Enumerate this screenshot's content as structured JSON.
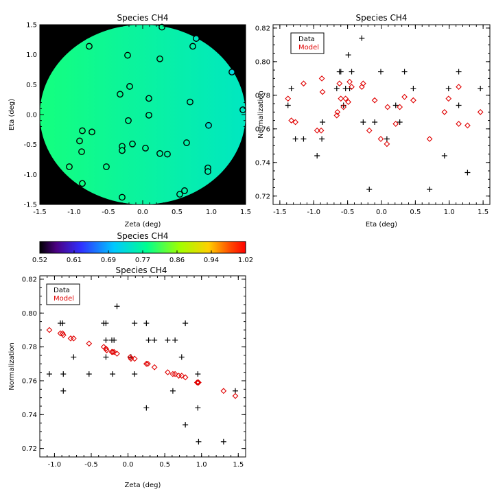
{
  "colors": {
    "data_marker": "#000000",
    "model_marker": "#e00000",
    "plot_bg": "#000000"
  },
  "chart_data": [
    {
      "id": "map",
      "type": "scatter",
      "title": "Species CH4",
      "xlabel": "Zeta (deg)",
      "ylabel": "Eta (deg)",
      "xlim": [
        -1.5,
        1.5
      ],
      "ylim": [
        -1.5,
        1.5
      ],
      "xticks": [
        "-1.5",
        "-1.0",
        "-0.5",
        "0.0",
        "0.5",
        "1.0",
        "1.5"
      ],
      "yticks": [
        "-1.5",
        "-1.0",
        "-0.5",
        "0.0",
        "0.5",
        "1.0",
        "1.5"
      ],
      "fill_circle_radius_deg": 1.5,
      "fill_gradient": {
        "left_value": 0.79,
        "right_value": 0.745
      },
      "points": [
        {
          "x": -0.78,
          "y": 1.14,
          "v": 0.785
        },
        {
          "x": -0.22,
          "y": 0.99,
          "v": 0.78
        },
        {
          "x": 0.28,
          "y": 1.46,
          "v": 0.775
        },
        {
          "x": 0.25,
          "y": 0.93,
          "v": 0.775
        },
        {
          "x": 0.73,
          "y": 1.14,
          "v": 0.764
        },
        {
          "x": 0.78,
          "y": 1.27,
          "v": 0.745
        },
        {
          "x": 1.3,
          "y": 0.71,
          "v": 0.725
        },
        {
          "x": 1.46,
          "y": 0.08,
          "v": 0.745
        },
        {
          "x": -0.19,
          "y": 0.47,
          "v": 0.777
        },
        {
          "x": -0.33,
          "y": 0.34,
          "v": 0.78
        },
        {
          "x": 0.09,
          "y": 0.27,
          "v": 0.773
        },
        {
          "x": 0.69,
          "y": 0.21,
          "v": 0.764
        },
        {
          "x": 0.09,
          "y": -0.01,
          "v": 0.773
        },
        {
          "x": -0.21,
          "y": -0.1,
          "v": 0.777
        },
        {
          "x": 0.96,
          "y": -0.18,
          "v": 0.735
        },
        {
          "x": -0.88,
          "y": -0.27,
          "v": 0.787
        },
        {
          "x": -0.74,
          "y": -0.29,
          "v": 0.785
        },
        {
          "x": -0.92,
          "y": -0.44,
          "v": 0.788
        },
        {
          "x": -0.15,
          "y": -0.49,
          "v": 0.776
        },
        {
          "x": -0.3,
          "y": -0.53,
          "v": 0.779
        },
        {
          "x": 0.64,
          "y": -0.47,
          "v": 0.764
        },
        {
          "x": 0.04,
          "y": -0.56,
          "v": 0.774
        },
        {
          "x": -0.89,
          "y": -0.62,
          "v": 0.788
        },
        {
          "x": -0.3,
          "y": -0.6,
          "v": 0.779
        },
        {
          "x": 0.25,
          "y": -0.65,
          "v": 0.77
        },
        {
          "x": 0.36,
          "y": -0.66,
          "v": 0.768
        },
        {
          "x": -0.53,
          "y": -0.87,
          "v": 0.782
        },
        {
          "x": 0.95,
          "y": -0.89,
          "v": 0.759
        },
        {
          "x": 0.95,
          "y": -0.95,
          "v": 0.759
        },
        {
          "x": -1.07,
          "y": -0.87,
          "v": 0.79
        },
        {
          "x": -0.88,
          "y": -1.15,
          "v": 0.787
        },
        {
          "x": 0.61,
          "y": -1.27,
          "v": 0.764
        },
        {
          "x": 0.54,
          "y": -1.33,
          "v": 0.765
        },
        {
          "x": -0.3,
          "y": -1.38,
          "v": 0.779
        }
      ]
    },
    {
      "id": "colorbar",
      "type": "heatmap",
      "title": "Species CH4",
      "range": [
        0.52,
        1.02
      ],
      "ticks": [
        "0.52",
        "0.61",
        "0.69",
        "0.77",
        "0.86",
        "0.94",
        "1.02"
      ]
    },
    {
      "id": "norm_eta",
      "type": "scatter",
      "title": "Species CH4",
      "xlabel": "Eta (deg)",
      "ylabel": "Normalization",
      "xlim": [
        -1.6,
        1.6
      ],
      "ylim": [
        0.715,
        0.822
      ],
      "xticks": [
        "-1.5",
        "-1.0",
        "-0.5",
        "0.0",
        "0.5",
        "1.0",
        "1.5"
      ],
      "yticks": [
        "0.72",
        "0.74",
        "0.76",
        "0.78",
        "0.80",
        "0.82"
      ],
      "legend": {
        "position": "top-left",
        "entries": [
          "Data",
          "Model"
        ]
      },
      "series": [
        {
          "name": "Data",
          "marker": "plus",
          "points": [
            [
              -1.38,
              0.774
            ],
            [
              -1.33,
              0.784
            ],
            [
              -1.27,
              0.754
            ],
            [
              -1.15,
              0.754
            ],
            [
              -0.95,
              0.744
            ],
            [
              -0.88,
              0.754
            ],
            [
              -0.87,
              0.764
            ],
            [
              -0.66,
              0.784
            ],
            [
              -0.62,
              0.794
            ],
            [
              -0.6,
              0.794
            ],
            [
              -0.56,
              0.774
            ],
            [
              -0.53,
              0.784
            ],
            [
              -0.49,
              0.804
            ],
            [
              -0.47,
              0.784
            ],
            [
              -0.44,
              0.794
            ],
            [
              -0.29,
              0.814
            ],
            [
              -0.27,
              0.764
            ],
            [
              -0.18,
              0.724
            ],
            [
              -0.1,
              0.764
            ],
            [
              -0.01,
              0.794
            ],
            [
              0.08,
              0.754
            ],
            [
              0.21,
              0.774
            ],
            [
              0.27,
              0.764
            ],
            [
              0.34,
              0.794
            ],
            [
              0.47,
              0.784
            ],
            [
              0.71,
              0.724
            ],
            [
              0.93,
              0.744
            ],
            [
              0.99,
              0.784
            ],
            [
              1.14,
              0.794
            ],
            [
              1.14,
              0.774
            ],
            [
              1.27,
              0.734
            ],
            [
              1.46,
              0.784
            ]
          ]
        },
        {
          "name": "Model",
          "marker": "diamond",
          "points": [
            [
              -1.38,
              0.778
            ],
            [
              -1.33,
              0.765
            ],
            [
              -1.27,
              0.764
            ],
            [
              -1.15,
              0.787
            ],
            [
              -0.95,
              0.759
            ],
            [
              -0.89,
              0.759
            ],
            [
              -0.88,
              0.79
            ],
            [
              -0.87,
              0.782
            ],
            [
              -0.66,
              0.768
            ],
            [
              -0.65,
              0.77
            ],
            [
              -0.62,
              0.787
            ],
            [
              -0.6,
              0.778
            ],
            [
              -0.56,
              0.773
            ],
            [
              -0.53,
              0.778
            ],
            [
              -0.49,
              0.776
            ],
            [
              -0.47,
              0.788
            ],
            [
              -0.44,
              0.785
            ],
            [
              -0.29,
              0.785
            ],
            [
              -0.27,
              0.787
            ],
            [
              -0.18,
              0.759
            ],
            [
              -0.1,
              0.777
            ],
            [
              -0.01,
              0.754
            ],
            [
              0.08,
              0.751
            ],
            [
              0.09,
              0.773
            ],
            [
              0.21,
              0.763
            ],
            [
              0.27,
              0.773
            ],
            [
              0.34,
              0.779
            ],
            [
              0.47,
              0.777
            ],
            [
              0.71,
              0.754
            ],
            [
              0.93,
              0.77
            ],
            [
              0.99,
              0.778
            ],
            [
              1.14,
              0.785
            ],
            [
              1.14,
              0.763
            ],
            [
              1.27,
              0.762
            ],
            [
              1.46,
              0.77
            ]
          ]
        }
      ]
    },
    {
      "id": "norm_zeta",
      "type": "scatter",
      "title": "Species CH4",
      "xlabel": "Zeta (deg)",
      "ylabel": "Normalization",
      "xlim": [
        -1.2,
        1.6
      ],
      "ylim": [
        0.715,
        0.822
      ],
      "xticks": [
        "-1.0",
        "-0.5",
        "0.0",
        "0.5",
        "1.0",
        "1.5"
      ],
      "yticks": [
        "0.72",
        "0.74",
        "0.76",
        "0.78",
        "0.80",
        "0.82"
      ],
      "legend": {
        "position": "top-left",
        "entries": [
          "Data",
          "Model"
        ]
      },
      "series": [
        {
          "name": "Data",
          "marker": "plus",
          "points": [
            [
              -1.07,
              0.764
            ],
            [
              -0.92,
              0.794
            ],
            [
              -0.89,
              0.794
            ],
            [
              -0.88,
              0.764
            ],
            [
              -0.88,
              0.754
            ],
            [
              -0.78,
              0.814
            ],
            [
              -0.74,
              0.774
            ],
            [
              -0.53,
              0.764
            ],
            [
              -0.33,
              0.794
            ],
            [
              -0.3,
              0.794
            ],
            [
              -0.3,
              0.774
            ],
            [
              -0.3,
              0.784
            ],
            [
              -0.22,
              0.784
            ],
            [
              -0.21,
              0.764
            ],
            [
              -0.19,
              0.784
            ],
            [
              -0.15,
              0.804
            ],
            [
              0.04,
              0.774
            ],
            [
              0.09,
              0.764
            ],
            [
              0.09,
              0.794
            ],
            [
              0.25,
              0.794
            ],
            [
              0.25,
              0.744
            ],
            [
              0.28,
              0.784
            ],
            [
              0.36,
              0.784
            ],
            [
              0.54,
              0.784
            ],
            [
              0.61,
              0.754
            ],
            [
              0.64,
              0.784
            ],
            [
              0.73,
              0.774
            ],
            [
              0.78,
              0.734
            ],
            [
              0.78,
              0.794
            ],
            [
              0.95,
              0.764
            ],
            [
              0.95,
              0.744
            ],
            [
              0.96,
              0.724
            ],
            [
              1.3,
              0.724
            ],
            [
              1.46,
              0.754
            ]
          ]
        },
        {
          "name": "Model",
          "marker": "diamond",
          "points": [
            [
              -1.07,
              0.79
            ],
            [
              -0.92,
              0.788
            ],
            [
              -0.89,
              0.788
            ],
            [
              -0.88,
              0.787
            ],
            [
              -0.78,
              0.785
            ],
            [
              -0.74,
              0.785
            ],
            [
              -0.53,
              0.782
            ],
            [
              -0.33,
              0.78
            ],
            [
              -0.3,
              0.779
            ],
            [
              -0.29,
              0.778
            ],
            [
              -0.22,
              0.777
            ],
            [
              -0.21,
              0.777
            ],
            [
              -0.19,
              0.777
            ],
            [
              -0.15,
              0.776
            ],
            [
              0.03,
              0.774
            ],
            [
              0.04,
              0.773
            ],
            [
              0.09,
              0.773
            ],
            [
              0.25,
              0.77
            ],
            [
              0.27,
              0.77
            ],
            [
              0.36,
              0.768
            ],
            [
              0.54,
              0.765
            ],
            [
              0.61,
              0.764
            ],
            [
              0.64,
              0.764
            ],
            [
              0.69,
              0.763
            ],
            [
              0.73,
              0.763
            ],
            [
              0.78,
              0.762
            ],
            [
              0.94,
              0.759
            ],
            [
              0.95,
              0.759
            ],
            [
              0.96,
              0.759
            ],
            [
              1.3,
              0.754
            ],
            [
              1.46,
              0.751
            ]
          ]
        }
      ]
    }
  ]
}
